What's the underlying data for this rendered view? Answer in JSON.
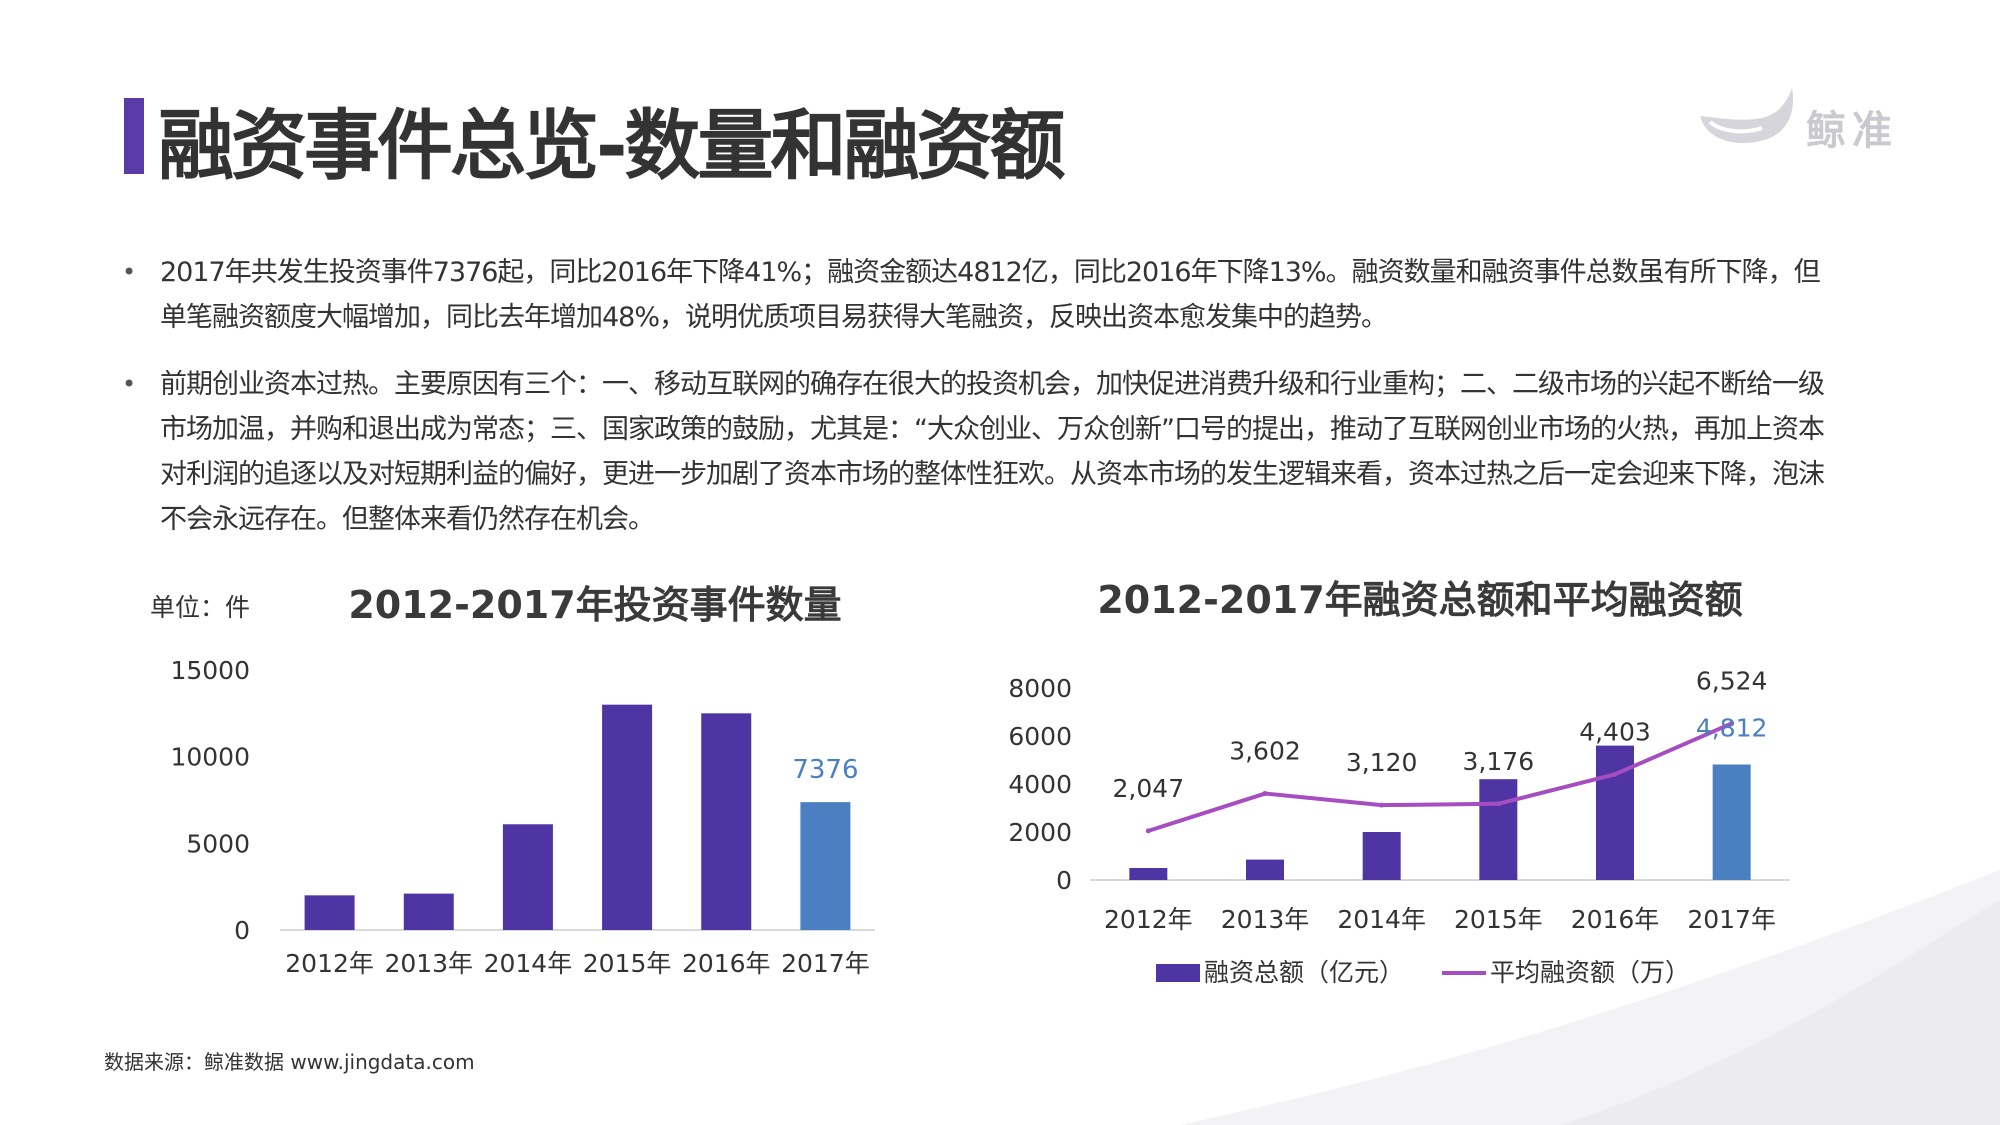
{
  "page": {
    "title": "融资事件总览-数量和融资额",
    "logo_text": "鲸准",
    "accent_color": "#5b3ba8",
    "bullets": [
      "2017年共发生投资事件7376起，同比2016年下降41%；融资金额达4812亿，同比2016年下降13%。融资数量和融资事件总数虽有所下降，但单笔融资额度大幅增加，同比去年增加48%，说明优质项目易获得大笔融资，反映出资本愈发集中的趋势。",
      "前期创业资本过热。主要原因有三个：一、移动互联网的确存在很大的投资机会，加快促进消费升级和行业重构；二、二级市场的兴起不断给一级市场加温，并购和退出成为常态；三、国家政策的鼓励，尤其是：“大众创业、万众创新”口号的提出，推动了互联网创业市场的火热，再加上资本对利润的追逐以及对短期利益的偏好，更进一步加剧了资本市场的整体性狂欢。从资本市场的发生逻辑来看，资本过热之后一定会迎来下降，泡沫不会永远存在。但整体来看仍然存在机会。"
    ],
    "source": "数据来源：鲸准数据 www.jingdata.com"
  },
  "chart_data": [
    {
      "type": "bar",
      "title": "2012-2017年投资事件数量",
      "unit_label": "单位：件",
      "categories": [
        "2012年",
        "2013年",
        "2014年",
        "2015年",
        "2016年",
        "2017年"
      ],
      "values": [
        2000,
        2100,
        6100,
        13000,
        12500,
        7376
      ],
      "yticks": [
        0,
        5000,
        10000,
        15000
      ],
      "ylim": [
        0,
        15000
      ],
      "data_labels": [
        {
          "index": 5,
          "text": "7376"
        }
      ],
      "bar_color": "#4f35a3",
      "highlight_color": "#4a7fc1",
      "highlight_index": 5,
      "grid": false
    },
    {
      "type": "bar",
      "title": "2012-2017年融资总额和平均融资额",
      "categories": [
        "2012年",
        "2013年",
        "2014年",
        "2015年",
        "2016年",
        "2017年"
      ],
      "series": [
        {
          "name": "融资总额（亿元）",
          "type": "bar",
          "values": [
            500,
            850,
            2000,
            4200,
            5600,
            4812
          ]
        },
        {
          "name": "平均融资额（万）",
          "type": "line",
          "values": [
            2047,
            3602,
            3120,
            3176,
            4403,
            6524
          ]
        }
      ],
      "line_labels": [
        "2,047",
        "3,602",
        "3,120",
        "3,176",
        "4,403",
        "6,524"
      ],
      "bar_label": {
        "index": 5,
        "text": "4,812"
      },
      "yticks": [
        0,
        2000,
        4000,
        6000,
        8000
      ],
      "ylim": [
        0,
        8000
      ],
      "bar_color": "#4f35a3",
      "highlight_color": "#4a7fc1",
      "highlight_index": 5,
      "line_color": "#a64dc1",
      "legend_position": "bottom",
      "grid": false
    }
  ]
}
